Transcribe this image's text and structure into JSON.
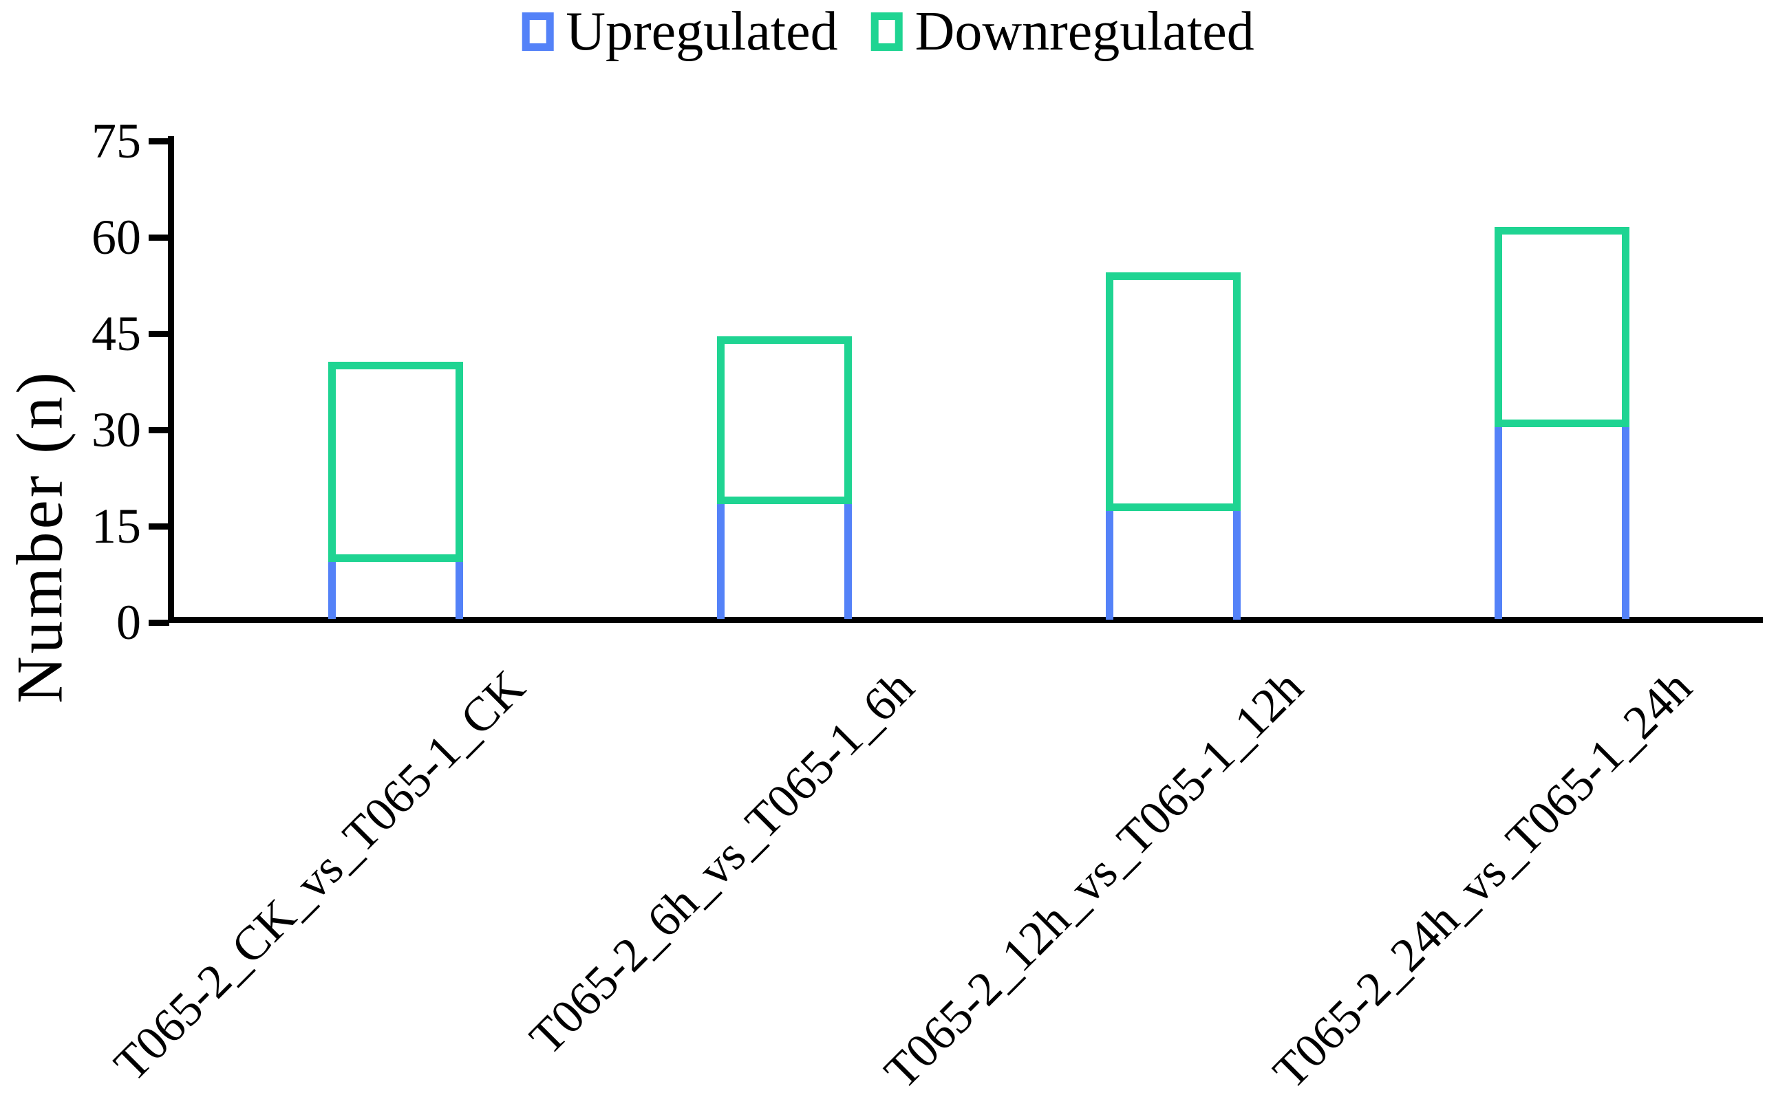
{
  "chart_data": {
    "type": "bar",
    "stacked": true,
    "bar_style": "outlined",
    "categories": [
      "T065-2_CK_vs_T065-1_CK",
      "T065-2_6h_vs_T065-1_6h",
      "T065-2_12h_vs_T065-1_12h",
      "T065-2_24h_vs_T065-1_24h"
    ],
    "series": [
      {
        "name": "Upregulated",
        "color": "#5482f8",
        "values": [
          10,
          19,
          18,
          31
        ]
      },
      {
        "name": "Downregulated",
        "color": "#1fd492",
        "values": [
          30,
          25,
          36,
          30
        ]
      }
    ],
    "stack_totals": [
      40,
      44,
      54,
      61
    ],
    "title": "",
    "xlabel": "",
    "ylabel": "Number (n)",
    "ylim": [
      0,
      75
    ],
    "yticks": [
      0,
      15,
      30,
      45,
      60,
      75
    ],
    "grid": false,
    "legend_position": "top-center"
  },
  "colors": {
    "background": "#ffffff",
    "axis": "#000000",
    "text": "#000000",
    "upregulated": "#5482f8",
    "downregulated": "#1fd492"
  }
}
